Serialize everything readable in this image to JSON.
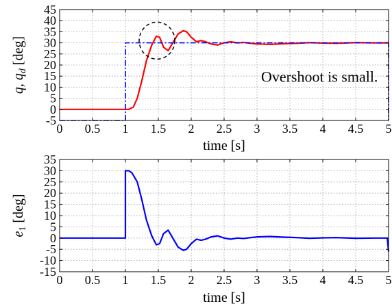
{
  "chart_data": [
    {
      "type": "line",
      "xlabel": "time [s]",
      "ylabel": "q,  q_d  [deg]",
      "ylabel_parts": {
        "q": "q,",
        "qd_main": "q",
        "qd_sub": "d",
        "unit": "[deg]"
      },
      "xlim": [
        0,
        5
      ],
      "ylim": [
        -5,
        45
      ],
      "xticks": [
        "0",
        "0.5",
        "1",
        "1.5",
        "2",
        "2.5",
        "3",
        "3.5",
        "4",
        "4.5",
        "5"
      ],
      "yticks": [
        "-5",
        "0",
        "5",
        "10",
        "15",
        "20",
        "25",
        "30",
        "35",
        "40",
        "45"
      ],
      "grid": true,
      "annotation": "Overshoot is small.",
      "series": [
        {
          "color": "#ff0000",
          "style": "solid",
          "x": [
            0,
            1.05,
            1.12,
            1.18,
            1.25,
            1.32,
            1.4,
            1.47,
            1.52,
            1.58,
            1.65,
            1.72,
            1.8,
            1.88,
            1.93,
            2.0,
            2.08,
            2.15,
            2.22,
            2.3,
            2.4,
            2.5,
            2.6,
            2.7,
            2.8,
            2.9,
            3.0,
            3.2,
            3.4,
            3.6,
            3.8,
            4.0,
            4.2,
            4.5,
            4.8,
            5.0
          ],
          "y": [
            0,
            0,
            1,
            5,
            13,
            22,
            29,
            33,
            32.5,
            28,
            26.5,
            30,
            34,
            35.5,
            35,
            32.5,
            30.5,
            31,
            30.5,
            29.5,
            29,
            30,
            30.5,
            30,
            30.2,
            29.8,
            29.5,
            29.3,
            29.6,
            29.8,
            30.1,
            29.9,
            29.8,
            30.1,
            30,
            30
          ]
        },
        {
          "color": "#0000ff",
          "style": "dashdot",
          "x": [
            0,
            1.0,
            1.0,
            5.0,
            5.0
          ],
          "y": [
            -5,
            -5,
            30,
            30,
            -5
          ]
        }
      ],
      "overshoot_marker": {
        "x": 1.48,
        "y": 31,
        "style": "dashed-circle"
      }
    },
    {
      "type": "line",
      "xlabel": "time [s]",
      "ylabel": "e_1 [deg]",
      "ylabel_parts": {
        "main": "e",
        "sub": "1",
        "unit": "[deg]"
      },
      "xlim": [
        0,
        5
      ],
      "ylim": [
        -15,
        35
      ],
      "xticks": [
        "0",
        "0.5",
        "1",
        "1.5",
        "2",
        "2.5",
        "3",
        "3.5",
        "4",
        "4.5",
        "5"
      ],
      "yticks": [
        "-15",
        "-10",
        "-5",
        "0",
        "5",
        "10",
        "15",
        "20",
        "25",
        "30",
        "35"
      ],
      "grid": true,
      "series": [
        {
          "color": "#0000ff",
          "style": "solid",
          "x": [
            0,
            1.0,
            1.0,
            1.05,
            1.1,
            1.18,
            1.25,
            1.32,
            1.4,
            1.47,
            1.52,
            1.58,
            1.65,
            1.72,
            1.8,
            1.88,
            1.93,
            2.0,
            2.08,
            2.15,
            2.22,
            2.3,
            2.4,
            2.5,
            2.6,
            2.7,
            2.8,
            2.9,
            3.0,
            3.2,
            3.4,
            3.6,
            3.8,
            4.0,
            4.2,
            4.5,
            4.8,
            4.98,
            5.0
          ],
          "y": [
            0,
            0,
            30,
            30,
            29,
            25,
            17,
            8,
            1,
            -3,
            -2.5,
            2,
            3.5,
            0,
            -4,
            -5.5,
            -5,
            -2.5,
            -0.5,
            -1,
            -0.5,
            0.5,
            1,
            0,
            -0.5,
            0,
            -0.2,
            0.2,
            0.5,
            0.7,
            0.4,
            0.2,
            -0.1,
            0.1,
            0.2,
            -0.1,
            0,
            0,
            -6
          ]
        }
      ]
    }
  ]
}
